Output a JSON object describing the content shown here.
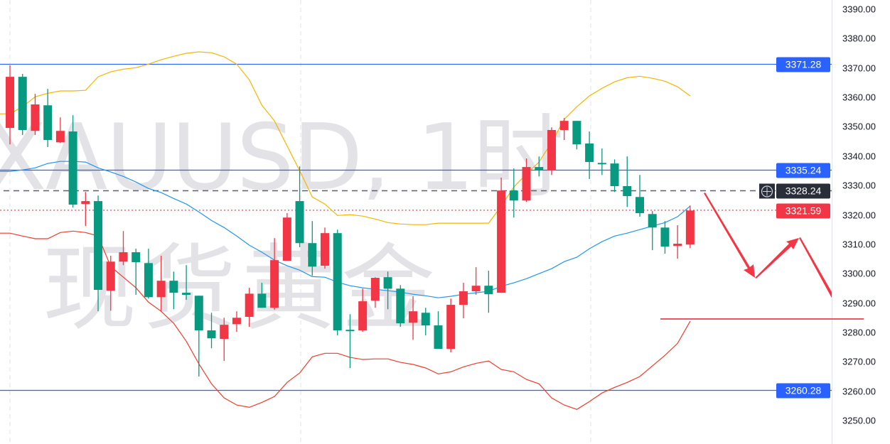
{
  "watermark": {
    "symbol_line": "XAUUSD, 1时",
    "name_line": "现货黄金"
  },
  "colors": {
    "up": "#f23645",
    "down": "#089981",
    "upper_band": "#f7b500",
    "middle_band": "#2196f3",
    "lower_band": "#f23c2c",
    "level_line": "#2962ff",
    "crosshair": "#2a2e39",
    "last_price": "#f23645",
    "drawing": "#f23645"
  },
  "price_labels": {
    "resistance_high": "3371.28",
    "resistance_mid": "3335.24",
    "crosshair": "3328.24",
    "last_price": "3321.59",
    "support_low": "3260.28"
  },
  "chart_data": {
    "type": "candlestick",
    "symbol": "XAUUSD",
    "interval": "1时",
    "ylim": [
      3247,
      3393
    ],
    "y_ticks": [
      "3390.00",
      "3380.00",
      "3370.00",
      "3360.00",
      "3350.00",
      "3340.00",
      "3330.00",
      "3320.00",
      "3310.00",
      "3300.00",
      "3290.00",
      "3280.00",
      "3270.00",
      "3260.00",
      "3250.00"
    ],
    "candles_ohlc": [
      [
        3349.6,
        3370.9,
        3344.0,
        3367.0
      ],
      [
        3367.0,
        3368.0,
        3347.2,
        3348.9
      ],
      [
        3348.6,
        3361.2,
        3347.2,
        3357.6
      ],
      [
        3357.3,
        3362.9,
        3343.1,
        3345.5
      ],
      [
        3344.7,
        3353.2,
        3344.5,
        3348.6
      ],
      [
        3348.4,
        3353.9,
        3322.5,
        3323.5
      ],
      [
        3323.7,
        3327.8,
        3316.2,
        3324.7
      ],
      [
        3324.7,
        3326.6,
        3287.2,
        3294.5
      ],
      [
        3294.2,
        3306.1,
        3287.4,
        3304.1
      ],
      [
        3304.1,
        3314.5,
        3302.9,
        3307.3
      ],
      [
        3307.3,
        3308.5,
        3292.8,
        3303.9
      ],
      [
        3303.6,
        3308.5,
        3291.5,
        3292.0
      ],
      [
        3292.0,
        3306.1,
        3287.4,
        3297.6
      ],
      [
        3297.6,
        3300.7,
        3287.9,
        3293.5
      ],
      [
        3293.5,
        3302.9,
        3291.1,
        3292.8
      ],
      [
        3292.5,
        3292.5,
        3265.0,
        3280.7
      ],
      [
        3280.7,
        3286.7,
        3274.6,
        3278.0
      ],
      [
        3277.8,
        3285.0,
        3270.3,
        3282.6
      ],
      [
        3282.8,
        3287.2,
        3280.2,
        3285.0
      ],
      [
        3285.3,
        3295.2,
        3281.9,
        3293.2
      ],
      [
        3293.2,
        3296.9,
        3288.4,
        3288.4
      ],
      [
        3288.4,
        3312.1,
        3287.7,
        3304.6
      ],
      [
        3304.4,
        3320.6,
        3304.4,
        3319.1
      ],
      [
        3324.7,
        3336.5,
        3309.0,
        3310.4
      ],
      [
        3310.4,
        3317.9,
        3299.3,
        3302.4
      ],
      [
        3302.7,
        3315.7,
        3301.7,
        3313.8
      ],
      [
        3313.8,
        3315.0,
        3279.0,
        3280.7
      ],
      [
        3280.9,
        3286.2,
        3267.9,
        3280.7
      ],
      [
        3280.7,
        3294.9,
        3280.2,
        3290.6
      ],
      [
        3290.8,
        3298.8,
        3288.4,
        3298.6
      ],
      [
        3298.8,
        3300.7,
        3287.9,
        3294.9
      ],
      [
        3294.9,
        3296.1,
        3281.9,
        3283.1
      ],
      [
        3283.3,
        3292.3,
        3277.5,
        3287.2
      ],
      [
        3286.7,
        3288.4,
        3279.0,
        3282.4
      ],
      [
        3282.4,
        3287.2,
        3274.4,
        3274.4
      ],
      [
        3274.4,
        3291.5,
        3273.2,
        3289.4
      ],
      [
        3289.4,
        3296.9,
        3284.8,
        3294.0
      ],
      [
        3294.0,
        3302.2,
        3292.8,
        3295.9
      ],
      [
        3295.9,
        3301.0,
        3286.7,
        3293.0
      ],
      [
        3293.5,
        3332.7,
        3293.5,
        3328.3
      ],
      [
        3328.3,
        3335.8,
        3319.1,
        3324.9
      ],
      [
        3324.9,
        3339.2,
        3324.4,
        3336.3
      ],
      [
        3336.3,
        3339.9,
        3333.1,
        3335.3
      ],
      [
        3335.1,
        3349.8,
        3333.6,
        3348.9
      ],
      [
        3348.9,
        3353.0,
        3345.5,
        3352.0
      ],
      [
        3352.0,
        3352.0,
        3342.3,
        3344.0
      ],
      [
        3344.3,
        3348.4,
        3332.2,
        3338.0
      ],
      [
        3337.7,
        3342.6,
        3333.6,
        3337.5
      ],
      [
        3337.5,
        3338.9,
        3327.8,
        3329.8
      ],
      [
        3329.8,
        3339.9,
        3322.7,
        3326.4
      ],
      [
        3326.1,
        3333.6,
        3319.4,
        3320.6
      ],
      [
        3320.3,
        3321.3,
        3308.0,
        3315.7
      ],
      [
        3315.7,
        3317.9,
        3306.8,
        3309.2
      ],
      [
        3309.4,
        3316.5,
        3305.1,
        3310.2
      ],
      [
        3309.9,
        3323.2,
        3308.7,
        3321.5
      ]
    ],
    "bollinger_upper": [
      3354.4,
      3356.8,
      3360.2,
      3361.4,
      3362.2,
      3362.2,
      3362.4,
      3367.0,
      3368.7,
      3369.6,
      3370.1,
      3371.3,
      3372.8,
      3374.0,
      3375.0,
      3375.5,
      3375.2,
      3373.8,
      3371.3,
      3366.0,
      3357.3,
      3352.0,
      3343.5,
      3335.1,
      3326.1,
      3323.7,
      3319.8,
      3320.1,
      3319.6,
      3318.6,
      3317.4,
      3316.9,
      3316.7,
      3316.7,
      3317.2,
      3317.2,
      3317.2,
      3317.2,
      3317.2,
      3323.0,
      3329.5,
      3333.9,
      3338.0,
      3344.7,
      3352.5,
      3356.8,
      3360.5,
      3363.1,
      3365.3,
      3366.7,
      3367.2,
      3366.5,
      3365.5,
      3363.6,
      3360.5
    ],
    "bollinger_middle": [
      3334.8,
      3335.3,
      3336.0,
      3337.5,
      3338.2,
      3338.2,
      3338.0,
      3336.0,
      3334.6,
      3333.1,
      3331.2,
      3329.0,
      3327.6,
      3325.6,
      3323.7,
      3321.0,
      3318.1,
      3315.7,
      3312.8,
      3309.7,
      3307.3,
      3304.6,
      3302.7,
      3301.2,
      3299.0,
      3298.8,
      3297.1,
      3295.9,
      3295.2,
      3294.7,
      3294.2,
      3293.7,
      3293.0,
      3292.5,
      3291.8,
      3292.3,
      3293.0,
      3293.5,
      3294.0,
      3295.7,
      3296.9,
      3298.3,
      3300.0,
      3301.7,
      3304.1,
      3305.6,
      3308.5,
      3310.9,
      3312.8,
      3313.8,
      3315.0,
      3316.2,
      3317.4,
      3319.4,
      3323.0
    ],
    "bollinger_lower": [
      3313.8,
      3312.8,
      3311.9,
      3311.9,
      3314.0,
      3314.5,
      3314.0,
      3312.8,
      3302.4,
      3298.8,
      3295.2,
      3290.3,
      3287.2,
      3283.1,
      3277.0,
      3269.3,
      3262.5,
      3257.7,
      3255.3,
      3254.5,
      3256.2,
      3258.2,
      3263.0,
      3266.2,
      3271.7,
      3272.9,
      3272.9,
      3271.5,
      3270.8,
      3271.0,
      3271.0,
      3269.8,
      3269.1,
      3267.9,
      3265.9,
      3266.6,
      3268.3,
      3269.5,
      3270.3,
      3267.4,
      3266.6,
      3264.0,
      3262.5,
      3257.7,
      3255.3,
      3253.8,
      3256.5,
      3259.4,
      3261.3,
      3263.0,
      3265.0,
      3268.6,
      3272.2,
      3276.3,
      3283.8
    ],
    "horizontal_levels": [
      {
        "name": "resistance-high",
        "price": 3371.28,
        "style": "solid",
        "color": "#2962ff"
      },
      {
        "name": "resistance-mid",
        "price": 3335.24,
        "style": "solid",
        "color": "#2962ff"
      },
      {
        "name": "crosshair",
        "price": 3328.24,
        "style": "dashed",
        "color": "#5d606b"
      },
      {
        "name": "last-price",
        "price": 3321.59,
        "style": "dotted",
        "color": "#f23645"
      },
      {
        "name": "support-low",
        "price": 3260.28,
        "style": "solid",
        "color": "#2962ff"
      }
    ],
    "target_line_price": 3284.5,
    "grid": "vertical-dashed"
  }
}
